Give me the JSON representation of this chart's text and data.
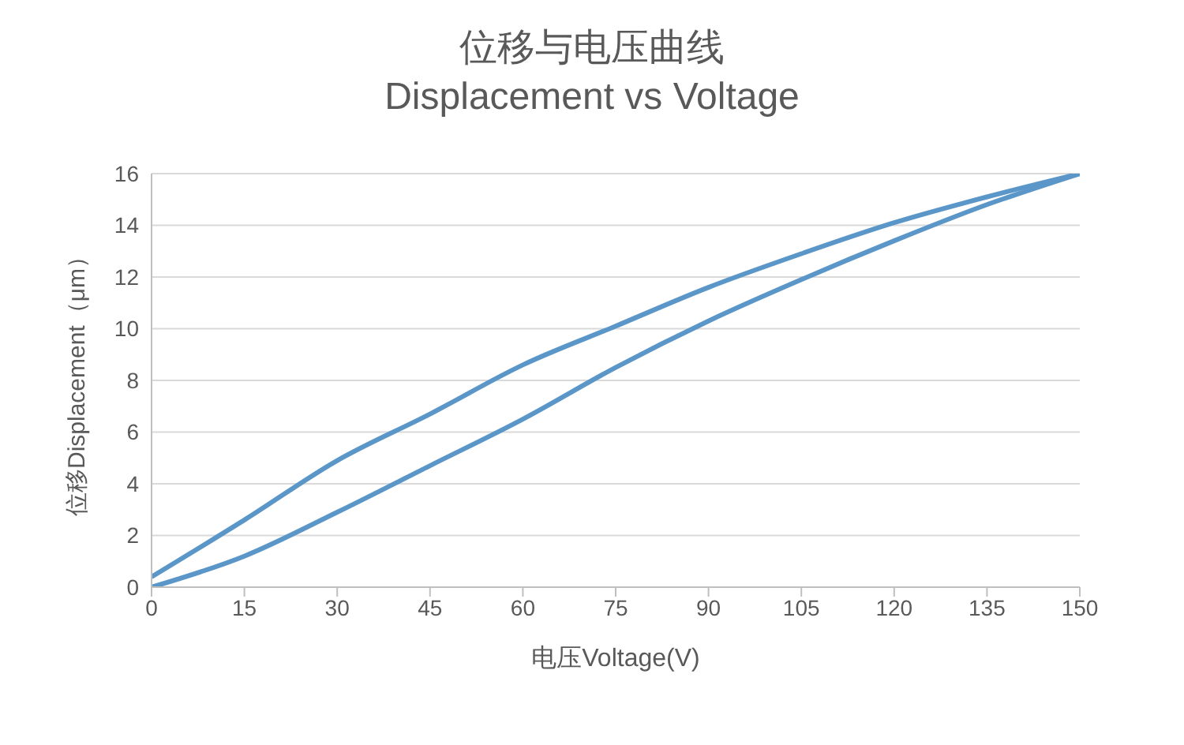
{
  "chart_data": {
    "type": "line",
    "title": "位移与电压曲线",
    "subtitle": "Displacement vs Voltage",
    "xlabel": "电压Voltage(V)",
    "ylabel": "位移Displacement（μm）",
    "series": [
      {
        "color": "#5b96c9",
        "x": [
          0,
          15,
          30,
          45,
          60,
          75,
          90,
          105,
          120,
          135,
          150
        ],
        "values": [
          0.4,
          2.6,
          4.9,
          6.7,
          8.6,
          10.1,
          11.6,
          12.9,
          14.1,
          15.1,
          16
        ]
      },
      {
        "color": "#5b96c9",
        "x": [
          0,
          15,
          30,
          45,
          60,
          75,
          90,
          105,
          120,
          135,
          150
        ],
        "values": [
          0,
          1.2,
          2.9,
          4.7,
          6.5,
          8.5,
          10.3,
          11.9,
          13.4,
          14.8,
          16
        ]
      }
    ],
    "xlim": [
      0,
      150
    ],
    "xticks": [
      0,
      15,
      30,
      45,
      60,
      75,
      90,
      105,
      120,
      135,
      150
    ],
    "ylim": [
      0,
      16
    ],
    "yticks": [
      0,
      2,
      4,
      6,
      8,
      10,
      12,
      14,
      16
    ],
    "grid": "y",
    "marker": "none",
    "line_style": "solid"
  }
}
